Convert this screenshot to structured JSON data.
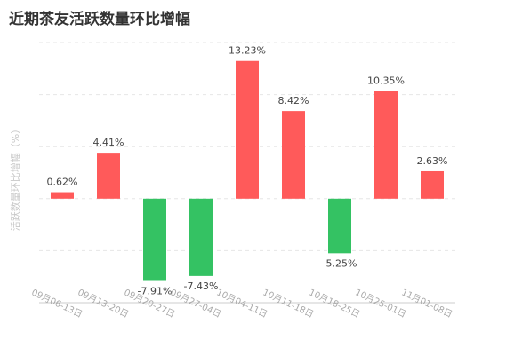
{
  "chart_data": {
    "type": "bar",
    "title": "近期茶友活跃数量环比增幅",
    "y_label": "活跃数量环比增幅（%）",
    "categories": [
      "09月06-13日",
      "09月13-20日",
      "09月20-27日",
      "09月27-04日",
      "10月04-11日",
      "10月11-18日",
      "10月18-25日",
      "10月25-01日",
      "11月01-08日"
    ],
    "values": [
      0.62,
      4.41,
      -7.91,
      -7.43,
      13.23,
      8.42,
      -5.25,
      10.35,
      2.63
    ],
    "value_labels": [
      "0.62%",
      "4.41%",
      "-7.91%",
      "-7.43%",
      "13.23%",
      "8.42%",
      "-5.25%",
      "10.35%",
      "2.63%"
    ],
    "colors": [
      "#ff5a5a",
      "#ff5a5a",
      "#34c263",
      "#34c263",
      "#ff5a5a",
      "#ff5a5a",
      "#34c263",
      "#ff5a5a",
      "#ff5a5a"
    ],
    "ylim": [
      -10,
      15
    ],
    "yticks": [
      -10,
      -5,
      0,
      5,
      10,
      15
    ],
    "grid": true
  }
}
